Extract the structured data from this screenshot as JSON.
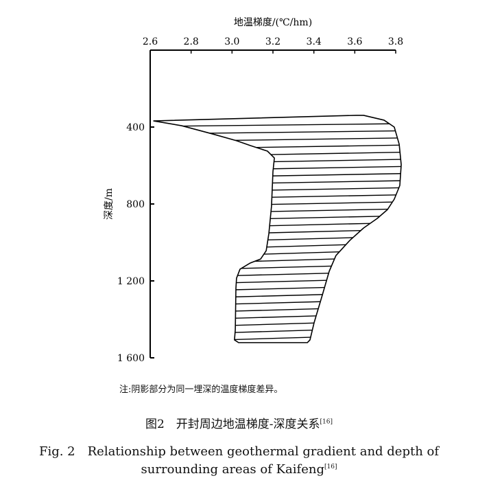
{
  "chart_data": {
    "type": "area",
    "xlabel": "地温梯度/(℃/hm)",
    "ylabel": "深度/m",
    "xlim": [
      2.6,
      3.8
    ],
    "ylim": [
      0,
      1600
    ],
    "y_inverted": true,
    "x_axis_position": "top",
    "x_ticks": [
      "2.6",
      "2.8",
      "3.0",
      "3.2",
      "3.4",
      "3.6",
      "3.8"
    ],
    "y_ticks": [
      {
        "value": 400,
        "label": "400"
      },
      {
        "value": 800,
        "label": "800"
      },
      {
        "value": 1200,
        "label": "1 200"
      },
      {
        "value": 1600,
        "label": "1 600"
      }
    ],
    "grid": false,
    "fill": "horizontal hatching",
    "left_boundary": [
      [
        2.617,
        368
      ],
      [
        2.754,
        393
      ],
      [
        2.905,
        436
      ],
      [
        3.022,
        471
      ],
      [
        3.089,
        496
      ],
      [
        3.173,
        525
      ],
      [
        3.207,
        561
      ],
      [
        3.2,
        632
      ],
      [
        3.193,
        811
      ],
      [
        3.18,
        954
      ],
      [
        3.167,
        1043
      ],
      [
        3.14,
        1086
      ],
      [
        3.089,
        1107
      ],
      [
        3.039,
        1139
      ],
      [
        3.022,
        1186
      ],
      [
        3.019,
        1239
      ],
      [
        3.016,
        1454
      ],
      [
        3.012,
        1507
      ],
      [
        3.032,
        1521
      ]
    ],
    "right_boundary": [
      [
        2.617,
        368
      ],
      [
        3.609,
        339
      ],
      [
        3.643,
        339
      ],
      [
        3.743,
        364
      ],
      [
        3.793,
        400
      ],
      [
        3.817,
        489
      ],
      [
        3.827,
        596
      ],
      [
        3.82,
        704
      ],
      [
        3.793,
        775
      ],
      [
        3.76,
        829
      ],
      [
        3.71,
        875
      ],
      [
        3.643,
        925
      ],
      [
        3.576,
        989
      ],
      [
        3.508,
        1068
      ],
      [
        3.475,
        1150
      ],
      [
        3.441,
        1275
      ],
      [
        3.401,
        1418
      ],
      [
        3.381,
        1507
      ],
      [
        3.368,
        1521
      ]
    ]
  },
  "note": "注:阴影部分为同一埋深的温度梯度差异。",
  "caption_cn": "图2　开封周边地温梯度-深度关系",
  "caption_en_line1": "Fig. 2　Relationship between geothermal gradient and depth of",
  "caption_en_line2": "surrounding areas of Kaifeng",
  "ref": "[16]"
}
